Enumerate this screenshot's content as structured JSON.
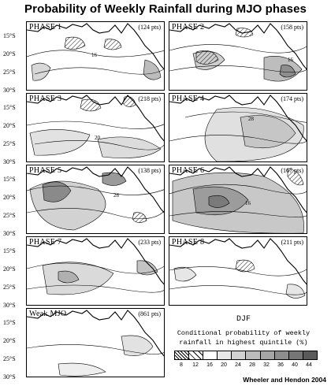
{
  "title": "Probability of Weekly Rainfall during MJO phases",
  "latitude_labels": [
    "15°S",
    "20°S",
    "25°S",
    "30°S"
  ],
  "panels": [
    {
      "name": "PHASE 1",
      "points": "(124 pts)"
    },
    {
      "name": "PHASE 2",
      "points": "(158 pts)"
    },
    {
      "name": "PHASE 3",
      "points": "(218 pts)"
    },
    {
      "name": "PHASE 4",
      "points": "(174 pts)"
    },
    {
      "name": "PHASE 5",
      "points": "(138 pts)"
    },
    {
      "name": "PHASE 6",
      "points": "(167 pts)"
    },
    {
      "name": "PHASE 7",
      "points": "(233 pts)"
    },
    {
      "name": "PHASE 8",
      "points": "(211 pts)"
    },
    {
      "name": "Weak MJO",
      "points": "(861 pts)"
    }
  ],
  "contour_labels": [
    "16",
    "16",
    "20",
    "28",
    "28",
    "16"
  ],
  "legend": {
    "season": "DJF",
    "caption_line1": "Conditional probability of weekly",
    "caption_line2": "rainfall in highest quintile (%)",
    "ticks": [
      "8",
      "12",
      "16",
      "20",
      "24",
      "28",
      "32",
      "36",
      "40",
      "44"
    ],
    "fill_colors": [
      "#ffffff",
      "#ffffff",
      "#ffffff",
      "#e8e8e8",
      "#d2d2d2",
      "#bcbcbc",
      "#a6a6a6",
      "#8e8e8e",
      "#767676",
      "#5a5a5a"
    ]
  },
  "credit": "Wheeler and Hendon 2004"
}
